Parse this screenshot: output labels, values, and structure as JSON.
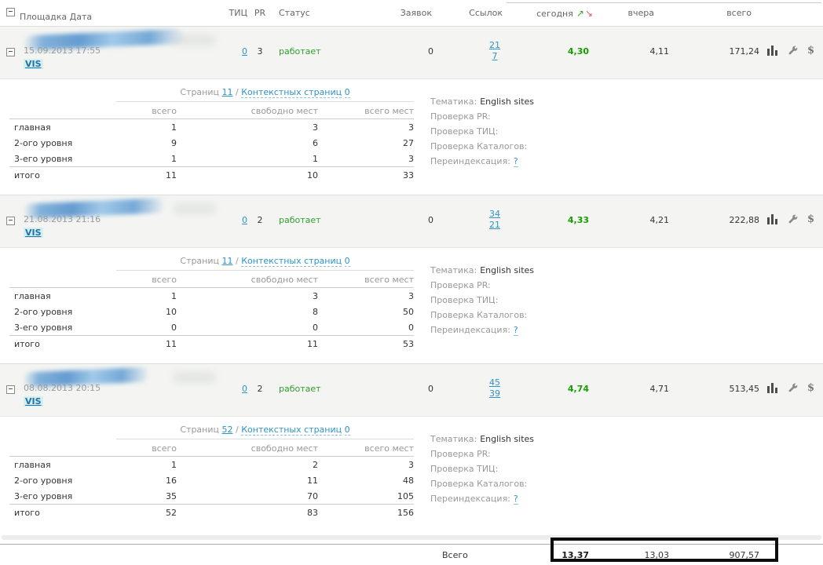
{
  "colors": {
    "link_blue": "#2e93c6",
    "status_green": "#2f9e2e",
    "today_green": "#169e00",
    "sort_up_green": "#3aa32a",
    "sort_down_red": "#e05a5a",
    "label_gray": "#999999",
    "vis_highlight": "#d8edf0",
    "annotation_box": "#0d0d0d"
  },
  "header": {
    "site": "Площадка Дата",
    "tic": "ТИЦ",
    "pr": "PR",
    "status": "Статус",
    "requests": "Заявок",
    "links": "Ссылок",
    "today": "сегодня",
    "yesterday": "вчера",
    "total": "всего",
    "sort_up_glyph": "↗",
    "sort_down_glyph": "↘"
  },
  "icons": {
    "dollar_glyph": "$"
  },
  "rows": [
    {
      "date": "15.09.2013 17:55",
      "vis_label": "VIS",
      "tic": "0",
      "pr": "3",
      "status": "работает",
      "requests": "0",
      "links_top": "21",
      "links_bottom": "7",
      "today": "4,30",
      "yesterday": "4,11",
      "total": "171,24",
      "pages": {
        "pages_label": "Страниц",
        "pages_value": "11",
        "separator": "/",
        "context_label": "Контекстных страниц",
        "context_value": "0",
        "columns": [
          "всего",
          "свободно мест",
          "всего мест"
        ],
        "rows": [
          {
            "label": "главная",
            "values": [
              "1",
              "3",
              "3"
            ]
          },
          {
            "label": "2-ого уровня",
            "values": [
              "9",
              "6",
              "27"
            ]
          },
          {
            "label": "3-его уровня",
            "values": [
              "1",
              "1",
              "3"
            ]
          }
        ],
        "total_row": {
          "label": "итого",
          "values": [
            "11",
            "10",
            "33"
          ]
        }
      },
      "props": {
        "theme_label": "Тематика:",
        "theme_value": "English sites",
        "pr_check_label": "Проверка PR:",
        "tic_check_label": "Проверка ТИЦ:",
        "catalogs_check_label": "Проверка Каталогов:",
        "reindex_label": "Переиндексация:",
        "reindex_value": "?"
      }
    },
    {
      "date": "21.08.2013 21:16",
      "vis_label": "VIS",
      "tic": "0",
      "pr": "2",
      "status": "работает",
      "requests": "0",
      "links_top": "34",
      "links_bottom": "21",
      "today": "4,33",
      "yesterday": "4,21",
      "total": "222,88",
      "pages": {
        "pages_label": "Страниц",
        "pages_value": "11",
        "separator": "/",
        "context_label": "Контекстных страниц",
        "context_value": "0",
        "columns": [
          "всего",
          "свободно мест",
          "всего мест"
        ],
        "rows": [
          {
            "label": "главная",
            "values": [
              "1",
              "3",
              "3"
            ]
          },
          {
            "label": "2-ого уровня",
            "values": [
              "10",
              "8",
              "50"
            ]
          },
          {
            "label": "3-его уровня",
            "values": [
              "0",
              "0",
              "0"
            ]
          }
        ],
        "total_row": {
          "label": "итого",
          "values": [
            "11",
            "11",
            "53"
          ]
        }
      },
      "props": {
        "theme_label": "Тематика:",
        "theme_value": "English sites",
        "pr_check_label": "Проверка PR:",
        "tic_check_label": "Проверка ТИЦ:",
        "catalogs_check_label": "Проверка Каталогов:",
        "reindex_label": "Переиндексация:",
        "reindex_value": "?"
      }
    },
    {
      "date": "08.08.2013 20:15",
      "vis_label": "VIS",
      "tic": "0",
      "pr": "2",
      "status": "работает",
      "requests": "0",
      "links_top": "45",
      "links_bottom": "39",
      "today": "4,74",
      "yesterday": "4,71",
      "total": "513,45",
      "pages": {
        "pages_label": "Страниц",
        "pages_value": "52",
        "separator": "/",
        "context_label": "Контекстных страниц",
        "context_value": "0",
        "columns": [
          "всего",
          "свободно мест",
          "всего мест"
        ],
        "rows": [
          {
            "label": "главная",
            "values": [
              "1",
              "2",
              "3"
            ]
          },
          {
            "label": "2-ого уровня",
            "values": [
              "16",
              "11",
              "48"
            ]
          },
          {
            "label": "3-его уровня",
            "values": [
              "35",
              "70",
              "105"
            ]
          }
        ],
        "total_row": {
          "label": "итого",
          "values": [
            "52",
            "83",
            "156"
          ]
        }
      },
      "props": {
        "theme_label": "Тематика:",
        "theme_value": "English sites",
        "pr_check_label": "Проверка PR:",
        "tic_check_label": "Проверка ТИЦ:",
        "catalogs_check_label": "Проверка Каталогов:",
        "reindex_label": "Переиндексация:",
        "reindex_value": "?"
      }
    }
  ],
  "footer": {
    "label": "Всего",
    "today": "13,37",
    "yesterday": "13,03",
    "total": "907,57"
  }
}
